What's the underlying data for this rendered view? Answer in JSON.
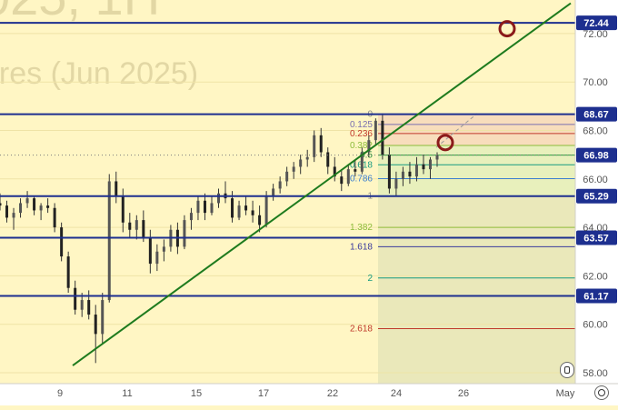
{
  "watermark": {
    "title": "025, 1H",
    "subtitle": "ures (Jun 2025)"
  },
  "chart_data": {
    "type": "candlestick",
    "x_ticks": [
      "9",
      "11",
      "15",
      "17",
      "22",
      "24",
      "26",
      "May"
    ],
    "y_ticks": [
      "58.00",
      "60.00",
      "62.00",
      "64.00",
      "66.00",
      "68.00",
      "70.00",
      "72.00"
    ],
    "ylim": [
      57.5,
      73.2
    ],
    "horizontal_levels": [
      {
        "price": 72.44,
        "label": "72.44"
      },
      {
        "price": 68.67,
        "label": "68.67"
      },
      {
        "price": 65.29,
        "label": "65.29"
      },
      {
        "price": 63.57,
        "label": "63.57"
      },
      {
        "price": 61.17,
        "label": "61.17"
      }
    ],
    "current_price": {
      "price": 66.98,
      "label": "66.98"
    },
    "fibonacci": {
      "high": 68.67,
      "low": 65.29,
      "levels": [
        {
          "ratio": 0,
          "label": "0",
          "color": "#888888"
        },
        {
          "ratio": 0.125,
          "label": "0.125",
          "color": "#7a6fb0"
        },
        {
          "ratio": 0.236,
          "label": "0.236",
          "color": "#c0392b"
        },
        {
          "ratio": 0.382,
          "label": "0.382",
          "color": "#8dbb3a"
        },
        {
          "ratio": 0.5,
          "label": "0.5",
          "color": "#2e9c42"
        },
        {
          "ratio": 0.618,
          "label": "0.618",
          "color": "#169a80"
        },
        {
          "ratio": 0.786,
          "label": "0.786",
          "color": "#3d7fd0"
        },
        {
          "ratio": 1,
          "label": "1",
          "color": "#888888"
        },
        {
          "ratio": 1.382,
          "label": "1.382",
          "color": "#8dbb3a"
        },
        {
          "ratio": 1.618,
          "label": "1.618",
          "color": "#3a3a9c"
        },
        {
          "ratio": 2,
          "label": "2",
          "color": "#169a80"
        },
        {
          "ratio": 2.618,
          "label": "2.618",
          "color": "#c0392b"
        }
      ]
    },
    "trendline": {
      "from": [
        0.0,
        58.3
      ],
      "to": [
        1.0,
        73.3
      ]
    },
    "target_markers": [
      {
        "price": 72.2
      },
      {
        "price": 67.5
      }
    ],
    "candles": [
      [
        65.0,
        65.4,
        64.7,
        64.9
      ],
      [
        64.9,
        65.1,
        64.2,
        64.4
      ],
      [
        64.4,
        64.8,
        63.9,
        64.6
      ],
      [
        64.6,
        65.2,
        64.4,
        65.0
      ],
      [
        65.0,
        65.5,
        64.8,
        65.2
      ],
      [
        65.2,
        65.3,
        64.5,
        64.7
      ],
      [
        64.7,
        65.0,
        64.3,
        64.9
      ],
      [
        64.9,
        65.2,
        64.6,
        64.8
      ],
      [
        64.8,
        65.0,
        63.8,
        64.0
      ],
      [
        64.0,
        64.2,
        62.6,
        62.8
      ],
      [
        62.8,
        63.0,
        61.3,
        61.5
      ],
      [
        61.5,
        61.8,
        60.4,
        60.6
      ],
      [
        60.6,
        61.3,
        60.3,
        61.0
      ],
      [
        61.0,
        61.4,
        60.2,
        60.4
      ],
      [
        60.4,
        60.8,
        58.4,
        59.6
      ],
      [
        59.6,
        61.3,
        59.2,
        61.0
      ],
      [
        61.0,
        66.2,
        60.9,
        65.9
      ],
      [
        65.9,
        66.3,
        65.0,
        65.3
      ],
      [
        65.3,
        65.6,
        63.8,
        64.2
      ],
      [
        64.2,
        64.6,
        63.6,
        63.9
      ],
      [
        63.9,
        64.5,
        63.5,
        64.3
      ],
      [
        64.3,
        64.7,
        63.4,
        63.6
      ],
      [
        63.6,
        63.9,
        62.1,
        62.5
      ],
      [
        62.5,
        63.3,
        62.2,
        63.0
      ],
      [
        63.0,
        63.5,
        62.6,
        63.2
      ],
      [
        63.2,
        64.1,
        63.0,
        63.9
      ],
      [
        63.9,
        64.2,
        62.9,
        63.2
      ],
      [
        63.2,
        64.5,
        63.1,
        64.3
      ],
      [
        64.3,
        64.8,
        63.9,
        64.6
      ],
      [
        64.6,
        65.3,
        64.3,
        65.1
      ],
      [
        65.1,
        65.4,
        64.3,
        64.6
      ],
      [
        64.6,
        65.3,
        64.5,
        65.0
      ],
      [
        65.0,
        65.6,
        64.8,
        65.4
      ],
      [
        65.4,
        65.9,
        65.0,
        65.2
      ],
      [
        65.2,
        65.5,
        64.2,
        64.4
      ],
      [
        64.4,
        65.1,
        64.3,
        64.9
      ],
      [
        64.9,
        65.3,
        64.5,
        64.7
      ],
      [
        64.7,
        65.1,
        64.2,
        64.5
      ],
      [
        64.5,
        64.9,
        63.8,
        64.1
      ],
      [
        64.1,
        65.5,
        64.0,
        65.3
      ],
      [
        65.3,
        65.8,
        65.1,
        65.6
      ],
      [
        65.6,
        66.1,
        65.4,
        65.9
      ],
      [
        65.9,
        66.5,
        65.7,
        66.3
      ],
      [
        66.3,
        66.7,
        66.0,
        66.5
      ],
      [
        66.5,
        67.0,
        66.2,
        66.8
      ],
      [
        66.8,
        67.2,
        66.5,
        66.9
      ],
      [
        66.9,
        68.0,
        66.7,
        67.8
      ],
      [
        67.8,
        68.1,
        66.9,
        67.1
      ],
      [
        67.1,
        67.3,
        66.2,
        66.5
      ],
      [
        66.5,
        66.9,
        65.9,
        66.1
      ],
      [
        66.1,
        66.4,
        65.5,
        65.8
      ],
      [
        65.8,
        66.6,
        65.7,
        66.4
      ],
      [
        66.4,
        66.8,
        66.1,
        66.3
      ],
      [
        66.3,
        67.3,
        66.2,
        67.1
      ],
      [
        67.1,
        67.8,
        66.9,
        67.6
      ],
      [
        67.6,
        68.5,
        67.4,
        68.4
      ],
      [
        68.4,
        68.7,
        66.8,
        67.0
      ],
      [
        67.0,
        67.3,
        65.4,
        65.6
      ],
      [
        65.6,
        66.3,
        65.3,
        66.0
      ],
      [
        66.0,
        66.5,
        65.7,
        66.3
      ],
      [
        66.3,
        66.7,
        65.8,
        66.1
      ],
      [
        66.1,
        66.9,
        65.9,
        66.6
      ],
      [
        66.6,
        67.0,
        66.2,
        66.4
      ],
      [
        66.4,
        66.9,
        66.0,
        66.8
      ],
      [
        66.8,
        67.1,
        66.5,
        66.98
      ]
    ]
  }
}
